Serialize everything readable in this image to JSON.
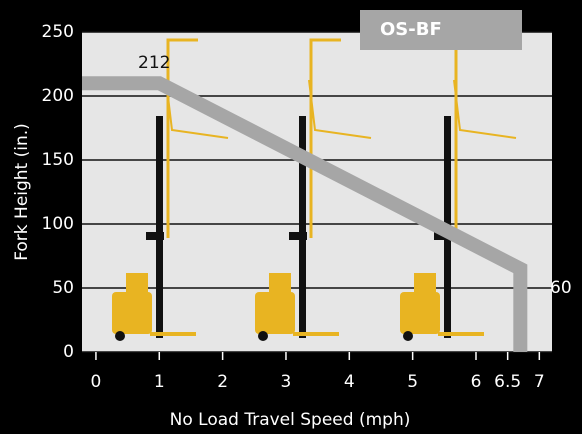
{
  "chart_data": {
    "type": "line",
    "x_label": "No Load Travel Speed (mph)",
    "y_label": "Fork Height (in.)",
    "xlim": [
      -0.22,
      7.2
    ],
    "xticks": [
      0,
      1,
      2,
      3,
      4,
      5,
      6,
      6.5,
      7
    ],
    "ylim": [
      0,
      250
    ],
    "yticks": [
      0,
      50,
      100,
      150,
      200,
      250
    ],
    "grid": true,
    "legend": "top-right",
    "series": [
      {
        "name": "OS-BF",
        "color": "#a6a6a6",
        "x": [
          -0.22,
          1,
          6.7,
          6.7
        ],
        "values": [
          210,
          210,
          65,
          0
        ]
      }
    ],
    "annotations": [
      {
        "text": "212"
      },
      {
        "text": "60"
      }
    ]
  }
}
